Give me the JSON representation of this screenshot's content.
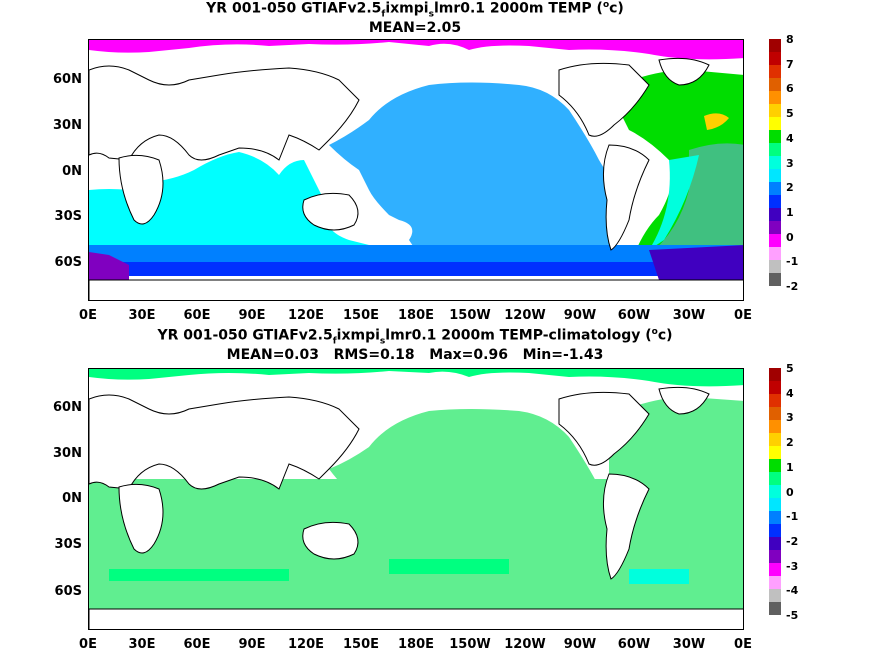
{
  "panels": [
    {
      "title_pre": "YR 001-050 GTIAFv2.5",
      "title_sub1": "f",
      "title_mid": "ixmpi",
      "title_sub2": "s",
      "title_post": "lmr0.1 2000m TEMP (",
      "title_sup": "o",
      "title_end": "c)",
      "stats": "MEAN=2.05",
      "colorbar_labels": [
        "8",
        "7",
        "6",
        "5",
        "4",
        "3",
        "2",
        "1",
        "0",
        "-1",
        "-2"
      ],
      "colorbar_colors": [
        "#a00000",
        "#c00000",
        "#e03000",
        "#e06000",
        "#ff9000",
        "#ffd000",
        "#ffff00",
        "#00dd00",
        "#00ff80",
        "#00ffdd",
        "#00e6ff",
        "#0080ff",
        "#0030ff",
        "#4000c0",
        "#8000c0",
        "#ff00ff",
        "#ffa0ff",
        "#c0c0c0",
        "#606060"
      ]
    },
    {
      "title_pre": "YR 001-050 GTIAFv2.5",
      "title_sub1": "f",
      "title_mid": "ixmpi",
      "title_sub2": "s",
      "title_post": "lmr0.1 2000m TEMP-climatology (",
      "title_sup": "o",
      "title_end": "c)",
      "stats": "MEAN=0.03   RMS=0.18   Max=0.96   Min=-1.43",
      "colorbar_labels": [
        "5",
        "4",
        "3",
        "2",
        "1",
        "0",
        "-1",
        "-2",
        "-3",
        "-4",
        "-5"
      ],
      "colorbar_colors": [
        "#a00000",
        "#c00000",
        "#e03000",
        "#e06000",
        "#ff9000",
        "#ffd000",
        "#ffff00",
        "#00dd00",
        "#00ff80",
        "#00ffdd",
        "#00e6ff",
        "#0080ff",
        "#0030ff",
        "#4000c0",
        "#8000c0",
        "#ff00ff",
        "#ffa0ff",
        "#c0c0c0",
        "#606060"
      ]
    }
  ],
  "lat_labels": [
    "60N",
    "30N",
    "0N",
    "30S",
    "60S"
  ],
  "lon_labels": [
    "0E",
    "30E",
    "60E",
    "90E",
    "120E",
    "150E",
    "180E",
    "150W",
    "120W",
    "90W",
    "60W",
    "30W",
    "0E"
  ]
}
